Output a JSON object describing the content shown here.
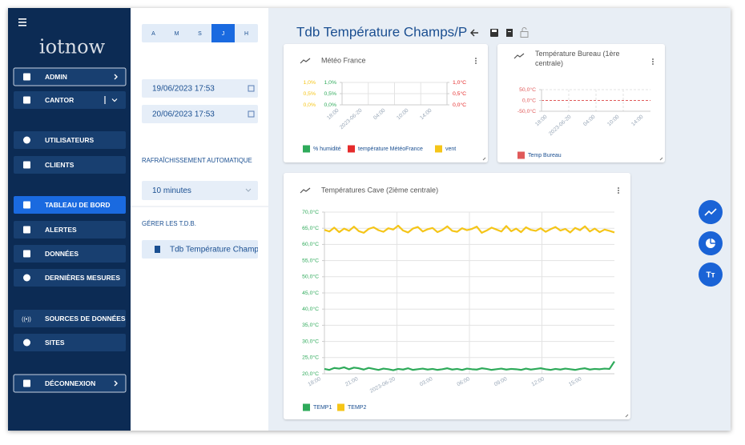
{
  "sidebar": {
    "logo": "iotnow",
    "menu": [
      "ADMIN",
      "CANTOR",
      "UTILISATEURS",
      "CLIENTS",
      "TABLEAU DE BORD",
      "ALERTES",
      "DONNÉES",
      "DERNIÈRES MESURES",
      "SOURCES DE DONNÉES",
      "SITES",
      "DÉCONNEXION"
    ]
  },
  "panel": {
    "periods": [
      "A",
      "M",
      "S",
      "J",
      "H"
    ],
    "dates": [
      "19/06/2023 17:53",
      "20/06/2023 17:53"
    ],
    "refresh_label": "RAFRAÎCHISSEMENT AUTOMATIQUE",
    "refresh_value": "10 minutes",
    "manage_label": "GÉRER LES T.D.B.",
    "dashboards": [
      "Tdb Température Champ"
    ]
  },
  "header": {
    "title": "Tdb Température Champs/P"
  },
  "chart_data": [
    {
      "type": "line",
      "title": "Météo France",
      "xticks": [
        "18:00",
        "2023-06-20",
        "04:00",
        "10:00",
        "14:00"
      ],
      "ylim": [
        0,
        1
      ],
      "yticks": [
        {
          "value": 0,
          "label": "0,0%"
        },
        {
          "value": 0.5,
          "label": "0,5%"
        },
        {
          "value": 1,
          "label": "1,0%"
        }
      ],
      "y2lim": [
        0,
        1
      ],
      "y2ticks": [
        {
          "value": 0,
          "label": "0,0°C"
        },
        {
          "value": 0.5,
          "label": "0,5°C"
        },
        {
          "value": 1,
          "label": "1,0°C"
        }
      ],
      "y3lim": [
        0,
        1
      ],
      "y3ticks": [
        {
          "value": 0,
          "label": "0,0%"
        },
        {
          "value": 0.5,
          "label": "0,5%"
        },
        {
          "value": 1,
          "label": "1,0%"
        }
      ],
      "grid": true,
      "series": [
        {
          "name": "% humidité",
          "color": "#2eaa5a",
          "values": []
        },
        {
          "name": "température MétéoFrance",
          "color": "#e52b2b",
          "values": [],
          "axis": "y2"
        },
        {
          "name": "vent",
          "color": "#f5c518",
          "values": [],
          "axis": "y3"
        }
      ]
    },
    {
      "type": "line",
      "title": "Température Bureau (1ère centrale)",
      "xticks": [
        "18:00",
        "2023-06-20",
        "04:00",
        "10:00",
        "14:00"
      ],
      "ylim": [
        -50,
        50
      ],
      "yticks": [
        {
          "value": -50,
          "label": "-50,0°C"
        },
        {
          "value": 0,
          "label": "0,0°C"
        },
        {
          "value": 50,
          "label": "50,0°C"
        }
      ],
      "grid": true,
      "series": [
        {
          "name": "Temp Bureau",
          "color": "#e05a5a",
          "values": []
        }
      ]
    },
    {
      "type": "line",
      "title": "Températures Cave (2ième centrale)",
      "xticks": [
        "18:00",
        "21:00",
        "2023-06-20",
        "03:00",
        "06:00",
        "09:00",
        "12:00",
        "15:00"
      ],
      "ylim": [
        20,
        70
      ],
      "yticks": [
        {
          "value": 20,
          "label": "20,0°C"
        },
        {
          "value": 25,
          "label": "25,0°C"
        },
        {
          "value": 30,
          "label": "30,0°C"
        },
        {
          "value": 35,
          "label": "35,0°C"
        },
        {
          "value": 40,
          "label": "40,0°C"
        },
        {
          "value": 45,
          "label": "45,0°C"
        },
        {
          "value": 50,
          "label": "50,0°C"
        },
        {
          "value": 55,
          "label": "55,0°C"
        },
        {
          "value": 60,
          "label": "60,0°C"
        },
        {
          "value": 65,
          "label": "65,0°C"
        },
        {
          "value": 70,
          "label": "70,0°C"
        }
      ],
      "grid": true,
      "series": [
        {
          "name": "TEMP1",
          "color": "#2eaa5a",
          "values": [
            21.5,
            21.2,
            21.8,
            21.6,
            22.0,
            21.4,
            21.9,
            21.7,
            21.3,
            21.8,
            21.5,
            21.2,
            21.6,
            21.4,
            21.1,
            21.5,
            21.3,
            21.7,
            21.2,
            21.4,
            21.6,
            21.3,
            21.5,
            21.2,
            21.4,
            21.7,
            21.3,
            21.5,
            21.2,
            21.6,
            21.4,
            21.3,
            21.7,
            21.5,
            21.2,
            21.4,
            21.6,
            21.3,
            21.5,
            21.4,
            21.2,
            21.6,
            21.3,
            21.5,
            21.7,
            21.4,
            21.2,
            21.5,
            21.3,
            21.6,
            21.4,
            21.2,
            21.5,
            21.7,
            21.3,
            21.5,
            21.4,
            21.6,
            21.5,
            23.8
          ]
        },
        {
          "name": "TEMP2",
          "color": "#f5c518",
          "values": [
            64.5,
            64.0,
            65.2,
            63.8,
            64.9,
            64.2,
            65.5,
            64.1,
            63.6,
            64.8,
            65.3,
            64.4,
            63.9,
            65.0,
            64.6,
            65.8,
            64.3,
            63.7,
            64.9,
            65.4,
            64.0,
            64.7,
            65.1,
            63.8,
            64.5,
            65.6,
            64.2,
            63.9,
            65.0,
            64.4,
            64.8,
            65.5,
            63.6,
            64.3,
            65.2,
            64.6,
            64.0,
            65.7,
            64.1,
            64.9,
            63.8,
            65.3,
            64.5,
            64.2,
            65.0,
            63.9,
            64.7,
            65.4,
            64.3,
            64.8,
            63.7,
            65.1,
            64.4,
            65.6,
            64.0,
            64.9,
            63.8,
            64.6,
            64.2,
            63.7
          ]
        }
      ]
    }
  ]
}
